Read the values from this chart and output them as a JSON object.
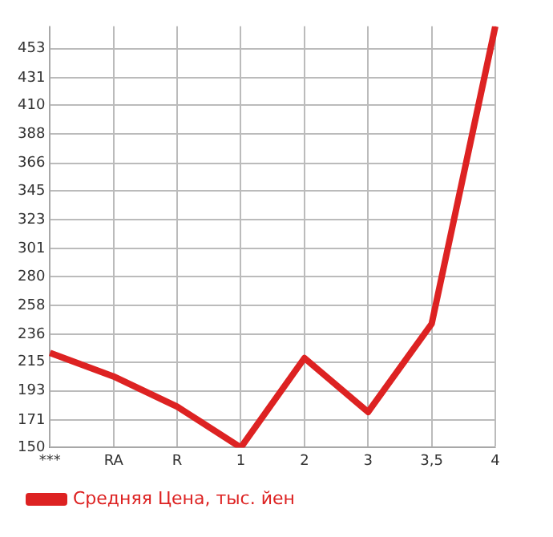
{
  "chart_data": {
    "type": "line",
    "categories": [
      "***",
      "RA",
      "R",
      "1",
      "2",
      "3",
      "3,5",
      "4"
    ],
    "series": [
      {
        "name": "Средняя Цена, тыс. йен",
        "color": "#dd2222",
        "values": [
          222,
          204,
          181,
          150,
          218,
          177,
          244,
          470
        ]
      }
    ],
    "ylim": [
      150,
      470
    ],
    "yticks": [
      150,
      171,
      193,
      215,
      236,
      258,
      280,
      301,
      323,
      345,
      366,
      388,
      410,
      431,
      453
    ],
    "grid": true,
    "legend": "bottom",
    "marker": "none",
    "line_style": "solid"
  }
}
